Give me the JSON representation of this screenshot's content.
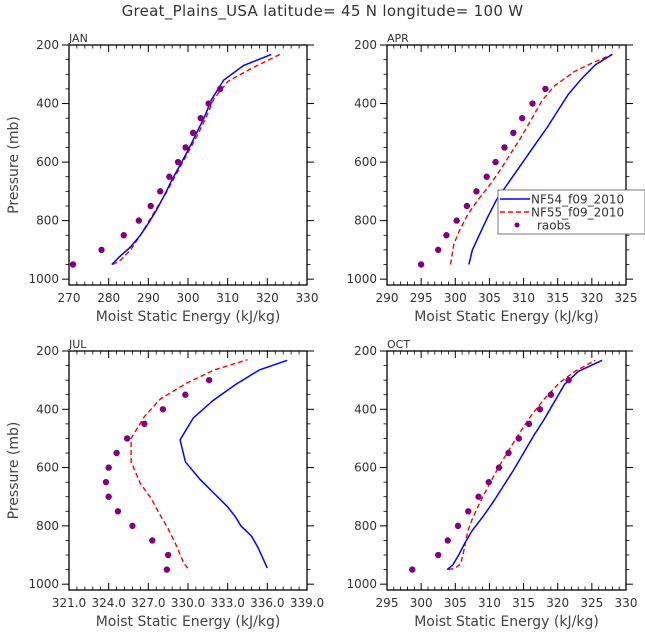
{
  "title": "Great_Plains_USA   latitude= 45 N longitude= 100 W",
  "colors": {
    "model1": "#0000ff",
    "model2": "#ff0000",
    "obs": "#800080",
    "frame": "#000000"
  },
  "legend": {
    "placement": "inside APR panel, lower-right",
    "entries": [
      {
        "label": "NF54_f09_2010",
        "style": "solid",
        "color": "#0000ff"
      },
      {
        "label": "NF55_f09_2010",
        "style": "dashed",
        "color": "#ff0000"
      },
      {
        "label": "raobs",
        "style": "dot",
        "color": "#800080"
      }
    ]
  },
  "chart_data": [
    {
      "type": "line",
      "panel": "JAN",
      "xlabel": "Moist Static Energy (kJ/kg)",
      "ylabel": "Pressure (mb)",
      "xlim": [
        270,
        330
      ],
      "ylim": [
        1020,
        200
      ],
      "xticks": [
        270,
        280,
        290,
        300,
        310,
        320,
        330
      ],
      "xtick_labels": [
        "270",
        "280",
        "290",
        "300",
        "310",
        "320",
        "330"
      ],
      "yticks": [
        200,
        400,
        600,
        800,
        1000
      ],
      "ytick_labels": [
        "200",
        "400",
        "600",
        "800",
        "1000"
      ],
      "series": [
        {
          "name": "NF54_f09_2010",
          "x": [
            280.8,
            283,
            285.5,
            288,
            290,
            292,
            294,
            296,
            298,
            300,
            302,
            304,
            306,
            309,
            314,
            321
          ],
          "y": [
            950,
            920,
            890,
            850,
            810,
            765,
            715,
            660,
            610,
            560,
            505,
            450,
            385,
            320,
            270,
            232
          ]
        },
        {
          "name": "NF55_f09_2010",
          "x": [
            281,
            283,
            285.5,
            288,
            290,
            292,
            294.5,
            296.5,
            298.5,
            300.5,
            302.5,
            304.5,
            306.5,
            310,
            316,
            323.5
          ],
          "y": [
            950,
            935,
            900,
            850,
            805,
            760,
            705,
            655,
            605,
            555,
            505,
            450,
            385,
            325,
            280,
            230
          ]
        },
        {
          "name": "raobs",
          "x": [
            271,
            278.2,
            283.8,
            287.6,
            290.6,
            293,
            295.3,
            297.5,
            299.4,
            301.3,
            303.2,
            305.2,
            308.1
          ],
          "y": [
            950,
            900,
            850,
            800,
            750,
            700,
            650,
            600,
            550,
            500,
            450,
            400,
            350
          ]
        }
      ]
    },
    {
      "type": "line",
      "panel": "APR",
      "xlabel": "Moist Static Energy (kJ/kg)",
      "ylabel": "",
      "xlim": [
        290,
        325
      ],
      "ylim": [
        1020,
        200
      ],
      "xticks": [
        290,
        295,
        300,
        305,
        310,
        315,
        320,
        325
      ],
      "xtick_labels": [
        "290",
        "295",
        "300",
        "305",
        "310",
        "315",
        "320",
        "325"
      ],
      "yticks": [
        200,
        400,
        600,
        800,
        1000
      ],
      "ytick_labels": [
        "200",
        "400",
        "600",
        "800",
        "1000"
      ],
      "series": [
        {
          "name": "NF54_f09_2010",
          "x": [
            302,
            302.5,
            303.5,
            304.7,
            306,
            307.5,
            309,
            310.5,
            312,
            313.5,
            315,
            316.5,
            318.5,
            320.5,
            323
          ],
          "y": [
            950,
            900,
            850,
            790,
            730,
            680,
            630,
            580,
            530,
            480,
            425,
            370,
            315,
            268,
            232
          ]
        },
        {
          "name": "NF55_f09_2010",
          "x": [
            299.3,
            299.8,
            300.5,
            301.8,
            303.3,
            305,
            306.5,
            308,
            309.5,
            311,
            312.7,
            314.5,
            317.5,
            320,
            323
          ],
          "y": [
            950,
            880,
            840,
            780,
            730,
            680,
            630,
            575,
            520,
            460,
            390,
            340,
            290,
            262,
            232
          ]
        },
        {
          "name": "raobs",
          "x": [
            295,
            297.5,
            298.7,
            300.2,
            301.7,
            303.1,
            304.6,
            305.9,
            307.2,
            308.5,
            309.8,
            311.3,
            313.2
          ],
          "y": [
            950,
            900,
            850,
            800,
            750,
            700,
            650,
            600,
            550,
            500,
            450,
            400,
            350
          ]
        }
      ]
    },
    {
      "type": "line",
      "panel": "JUL",
      "xlabel": "Moist Static Energy (kJ/kg)",
      "ylabel": "Pressure (mb)",
      "xlim": [
        321,
        339
      ],
      "ylim": [
        1020,
        200
      ],
      "xticks": [
        321,
        324,
        327,
        330,
        333,
        336,
        339
      ],
      "xtick_labels": [
        "321.0",
        "324.0",
        "327.0",
        "330.0",
        "333.0",
        "336.0",
        "339.0"
      ],
      "yticks": [
        200,
        400,
        600,
        800,
        1000
      ],
      "ytick_labels": [
        "200",
        "400",
        "600",
        "800",
        "1000"
      ],
      "series": [
        {
          "name": "NF54_f09_2010",
          "x": [
            336,
            335.8,
            335.3,
            334.8,
            334,
            333.6,
            333,
            331.9,
            330.9,
            329.8,
            329.4,
            330.4,
            331.9,
            333.6,
            335.4,
            337.5
          ],
          "y": [
            945,
            925,
            875,
            835,
            800,
            770,
            735,
            685,
            640,
            580,
            505,
            430,
            370,
            315,
            265,
            232
          ]
        },
        {
          "name": "NF55_f09_2010",
          "x": [
            330,
            329.7,
            329.2,
            328.5,
            327.8,
            327.2,
            326.4,
            325.7,
            325.7,
            326.7,
            327.9,
            329.9,
            332,
            334.5
          ],
          "y": [
            945,
            930,
            875,
            810,
            755,
            705,
            655,
            580,
            500,
            425,
            365,
            310,
            265,
            230
          ]
        },
        {
          "name": "raobs",
          "x": [
            328.4,
            328.5,
            327.3,
            325.8,
            324.7,
            324,
            323.8,
            324,
            324.6,
            325.4,
            326.7,
            328.1,
            329.8,
            331.6
          ],
          "y": [
            950,
            900,
            850,
            800,
            750,
            700,
            650,
            600,
            550,
            500,
            450,
            400,
            350,
            300
          ]
        }
      ]
    },
    {
      "type": "line",
      "panel": "OCT",
      "xlabel": "Moist Static Energy (kJ/kg)",
      "ylabel": "",
      "xlim": [
        295,
        330
      ],
      "ylim": [
        1020,
        200
      ],
      "xticks": [
        295,
        300,
        305,
        310,
        315,
        320,
        325,
        330
      ],
      "xtick_labels": [
        "295",
        "300",
        "305",
        "310",
        "315",
        "320",
        "325",
        "330"
      ],
      "yticks": [
        200,
        400,
        600,
        800,
        1000
      ],
      "ytick_labels": [
        "200",
        "400",
        "600",
        "800",
        "1000"
      ],
      "series": [
        {
          "name": "NF54_f09_2010",
          "x": [
            303.8,
            304.6,
            305.5,
            306.5,
            307.5,
            309,
            310.5,
            312,
            313.5,
            315,
            316.5,
            318,
            319.5,
            321,
            323,
            326.5
          ],
          "y": [
            950,
            935,
            900,
            855,
            815,
            770,
            720,
            665,
            610,
            550,
            490,
            435,
            375,
            315,
            270,
            232
          ]
        },
        {
          "name": "NF55_f09_2010",
          "x": [
            304,
            305,
            305.8,
            306.3,
            306.8,
            307.5,
            308.5,
            309.8,
            311.2,
            312.7,
            314.3,
            316,
            318,
            320.2,
            322.5,
            325.5
          ],
          "y": [
            950,
            945,
            930,
            880,
            820,
            775,
            725,
            665,
            605,
            545,
            485,
            425,
            365,
            310,
            270,
            232
          ]
        },
        {
          "name": "raobs",
          "x": [
            298.7,
            302.5,
            303.9,
            305.4,
            306.9,
            308.4,
            309.9,
            311.4,
            312.8,
            314.3,
            315.8,
            317.4,
            319,
            321.6
          ],
          "y": [
            950,
            900,
            850,
            800,
            750,
            700,
            650,
            600,
            550,
            500,
            450,
            400,
            350,
            300
          ]
        }
      ]
    }
  ]
}
